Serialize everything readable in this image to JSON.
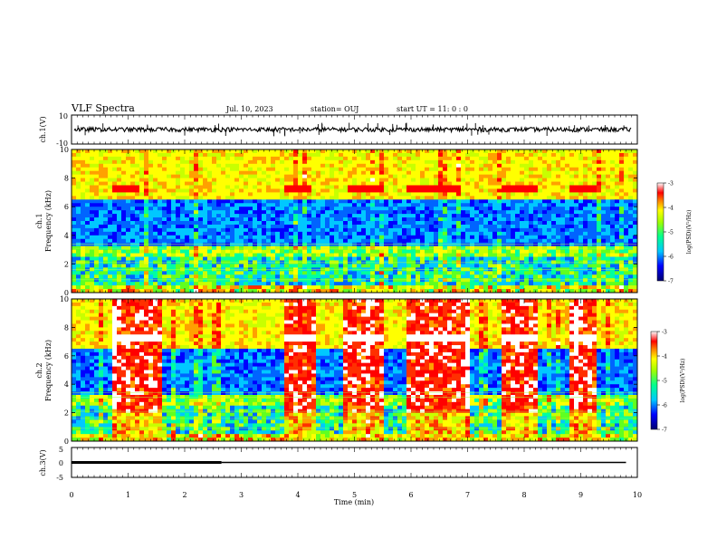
{
  "header": {
    "title": "VLF Spectra",
    "date": "Jul. 10, 2023",
    "station": "station= OUJ",
    "start": "start  UT =   11: 0  : 0"
  },
  "colorbar": {
    "label": "log(PSD)(V²/Hz)",
    "ticks": [
      "-3",
      "-4",
      "-5",
      "-6",
      "-7"
    ],
    "range": [
      -7,
      -3
    ],
    "colors": [
      "#000080",
      "#0000ff",
      "#00c8ff",
      "#00ff80",
      "#80ff00",
      "#ffff00",
      "#ff8000",
      "#ff0000",
      "#ffffff"
    ]
  },
  "chart_data": [
    {
      "type": "line",
      "panel": "ch1 waveform",
      "ylabel": "ch.1(V)",
      "ylim": [
        -10,
        10
      ],
      "yticks": [
        "10",
        "-10"
      ],
      "xlim": [
        0,
        10
      ],
      "description_values": {
        "baseline": 0,
        "typical_amplitude": 1.5,
        "spike_amplitude": 4
      }
    },
    {
      "type": "heatmap",
      "panel": "ch1 spectrogram",
      "ylabel": "ch.1\nFrequency (kHz)",
      "ylim": [
        0,
        10
      ],
      "yticks": [
        "0",
        "2",
        "4",
        "6",
        "8",
        "10"
      ],
      "xlim": [
        0,
        10
      ],
      "hot_intervals": [],
      "tone_khz": 7.2,
      "tone_intervals": [
        [
          0.7,
          1.2
        ],
        [
          3.8,
          4.2
        ],
        [
          4.9,
          5.5
        ],
        [
          5.9,
          6.9
        ],
        [
          7.6,
          8.2
        ],
        [
          8.8,
          9.3
        ]
      ]
    },
    {
      "type": "heatmap",
      "panel": "ch2 spectrogram",
      "ylabel": "ch.2\nFrequency (kHz)",
      "ylim": [
        0,
        10
      ],
      "yticks": [
        "0",
        "2",
        "4",
        "6",
        "8",
        "10"
      ],
      "xlim": [
        0,
        10
      ],
      "hot_intervals": [
        [
          0.75,
          1.6
        ],
        [
          3.75,
          4.3
        ],
        [
          4.8,
          5.5
        ],
        [
          5.9,
          7.0
        ],
        [
          7.6,
          8.2
        ],
        [
          8.8,
          9.3
        ]
      ],
      "tone_khz": 7.3
    },
    {
      "type": "line",
      "panel": "ch3 level",
      "ylabel": "ch.3(V)",
      "ylim": [
        -5,
        5
      ],
      "yticks": [
        "5",
        "0",
        "-5"
      ],
      "xlim": [
        0,
        10
      ],
      "xlabel": "Time (min)",
      "xticks": [
        "0",
        "1",
        "2",
        "3",
        "4",
        "5",
        "6",
        "7",
        "8",
        "9",
        "10"
      ],
      "segments": [
        {
          "x": [
            0,
            2.65
          ],
          "y": [
            0,
            0
          ],
          "style": "thick"
        },
        {
          "x": [
            2.65,
            9.8
          ],
          "y": [
            0,
            0
          ],
          "style": "thin"
        }
      ]
    }
  ]
}
